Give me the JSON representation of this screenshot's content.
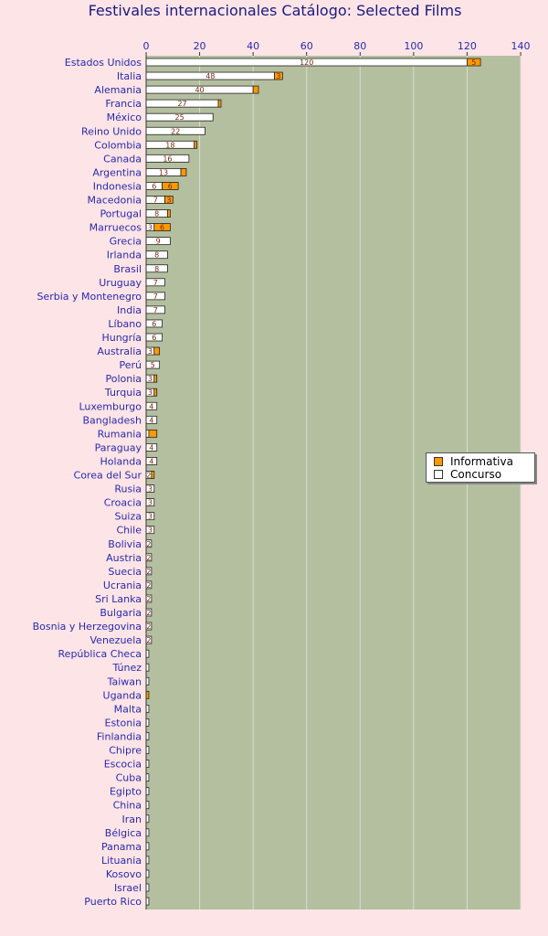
{
  "chart_data": {
    "type": "bar",
    "orientation": "horizontal",
    "stacked": true,
    "title": "Festivales internacionales Catálogo: Selected Films",
    "xlim": [
      0,
      140
    ],
    "xticks": [
      0,
      20,
      40,
      60,
      80,
      100,
      120,
      140
    ],
    "grid": true,
    "legend_position": "right",
    "categories": [
      "Estados Unidos",
      "Italia",
      "Alemania",
      "Francia",
      "México",
      "Reino Unido",
      "Colombia",
      "Canada",
      "Argentina",
      "Indonesia",
      "Macedonia",
      "Portugal",
      "Marruecos",
      "Grecia",
      "Irlanda",
      "Brasil",
      "Uruguay",
      "Serbia y Montenegro",
      "India",
      "Líbano",
      "Hungría",
      "Australia",
      "Perú",
      "Polonia",
      "Turquia",
      "Luxemburgo",
      "Bangladesh",
      "Rumania",
      "Paraguay",
      "Holanda",
      "Corea del Sur",
      "Rusia",
      "Croacia",
      "Suiza",
      "Chile",
      "Bolivia",
      "Austria",
      "Suecia",
      "Ucrania",
      "Sri Lanka",
      "Bulgaria",
      "Bosnia y Herzegovina",
      "Venezuela",
      "República Checa",
      "Túnez",
      "Taiwan",
      "Uganda",
      "Malta",
      "Estonia",
      "Finlandia",
      "Chipre",
      "Escocia",
      "Cuba",
      "Egipto",
      "China",
      "Iran",
      "Bélgica",
      "Panama",
      "Lituania",
      "Kosovo",
      "Israel",
      "Puerto Rico"
    ],
    "series": [
      {
        "name": "Concurso",
        "color": "#ffffff",
        "values": [
          120,
          48,
          40,
          27,
          25,
          22,
          18,
          16,
          13,
          6,
          7,
          8,
          3,
          9,
          8,
          8,
          7,
          7,
          7,
          6,
          6,
          3,
          5,
          3,
          3,
          4,
          4,
          1,
          4,
          4,
          2,
          3,
          3,
          3,
          3,
          2,
          2,
          2,
          2,
          2,
          2,
          2,
          2,
          1,
          1,
          1,
          0,
          1,
          1,
          1,
          1,
          1,
          1,
          1,
          1,
          1,
          1,
          1,
          1,
          1,
          1,
          1
        ],
        "labels": [
          "120",
          "48",
          "40",
          "27",
          "25",
          "22",
          "18",
          "16",
          "13",
          "6",
          "7",
          "8",
          "3",
          "9",
          "8",
          "8",
          "7",
          "7",
          "7",
          "6",
          "6",
          "3",
          "5",
          "3",
          "3",
          "4",
          "4",
          "",
          "4",
          "4",
          "2",
          "3",
          "3",
          "3",
          "3",
          "2",
          "2",
          "2",
          "2",
          "2",
          "2",
          "2",
          "2",
          "",
          "",
          "",
          "",
          "",
          "",
          "",
          "",
          "",
          "",
          "",
          "",
          "",
          "",
          "",
          "",
          "",
          "",
          ""
        ]
      },
      {
        "name": "Informativa",
        "color": "#ff9900",
        "values": [
          5,
          3,
          2,
          1,
          0,
          0,
          1,
          0,
          2,
          6,
          3,
          1,
          6,
          0,
          0,
          0,
          0,
          0,
          0,
          0,
          0,
          2,
          0,
          1,
          1,
          0,
          0,
          3,
          0,
          0,
          1,
          0,
          0,
          0,
          0,
          0,
          0,
          0,
          0,
          0,
          0,
          0,
          0,
          0,
          0,
          0,
          1,
          0,
          0,
          0,
          0,
          0,
          0,
          0,
          0,
          0,
          0,
          0,
          0,
          0,
          0,
          0
        ],
        "labels": [
          "5",
          "3",
          "",
          "",
          "",
          "",
          "",
          "",
          "",
          "6",
          "3",
          "",
          "6",
          "",
          "",
          "",
          "",
          "",
          "",
          "",
          "",
          "",
          "",
          "",
          "",
          "",
          "",
          "",
          "",
          "",
          "",
          "",
          "",
          "",
          "",
          "",
          "",
          "",
          "",
          "",
          "",
          "",
          "",
          "",
          "",
          "",
          "",
          "",
          "",
          "",
          "",
          "",
          "",
          "",
          "",
          "",
          "",
          "",
          "",
          "",
          "",
          ""
        ]
      }
    ]
  }
}
